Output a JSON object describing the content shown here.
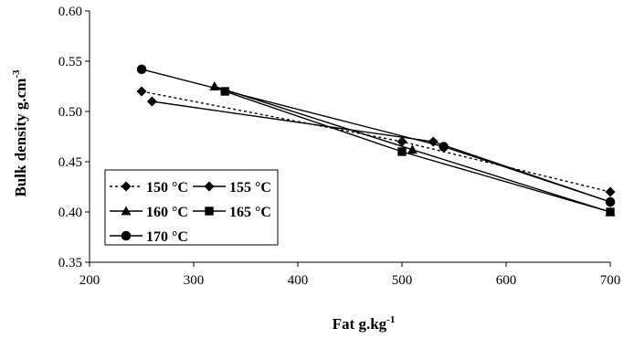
{
  "chart_data": {
    "type": "line",
    "title": "",
    "xlabel": "Fat g.kg",
    "xlabel_sup": "-1",
    "ylabel": "Bulk density g.cm",
    "ylabel_sup": "-3",
    "xlim": [
      200,
      700
    ],
    "ylim": [
      0.35,
      0.6
    ],
    "x_ticks": [
      200,
      300,
      400,
      500,
      600,
      700
    ],
    "x_tick_labels": [
      "200",
      "300",
      "400",
      "500",
      "600",
      "700"
    ],
    "y_ticks": [
      0.35,
      0.4,
      0.45,
      0.5,
      0.55,
      0.6
    ],
    "y_tick_labels": [
      "0.35",
      "0.40",
      "0.45",
      "0.50",
      "0.55",
      "0.60"
    ],
    "grid": false,
    "legend_position": "bottom-left",
    "series": [
      {
        "name": "150 °C",
        "marker": "diamond",
        "line": "dotted",
        "color": "#000000",
        "x": [
          250,
          500,
          700
        ],
        "y": [
          0.52,
          0.47,
          0.42
        ]
      },
      {
        "name": "155 °C",
        "marker": "diamond",
        "line": "solid",
        "color": "#000000",
        "x": [
          260,
          530,
          700
        ],
        "y": [
          0.51,
          0.47,
          0.41
        ]
      },
      {
        "name": "160 °C",
        "marker": "triangle",
        "line": "solid",
        "color": "#000000",
        "x": [
          320,
          510,
          700
        ],
        "y": [
          0.525,
          0.462,
          0.4
        ]
      },
      {
        "name": "165 °C",
        "marker": "square",
        "line": "solid",
        "color": "#000000",
        "x": [
          330,
          500,
          700
        ],
        "y": [
          0.52,
          0.46,
          0.4
        ]
      },
      {
        "name": "170 °C",
        "marker": "circle",
        "line": "solid",
        "color": "#000000",
        "x": [
          250,
          540,
          700
        ],
        "y": [
          0.542,
          0.465,
          0.41
        ]
      }
    ]
  }
}
